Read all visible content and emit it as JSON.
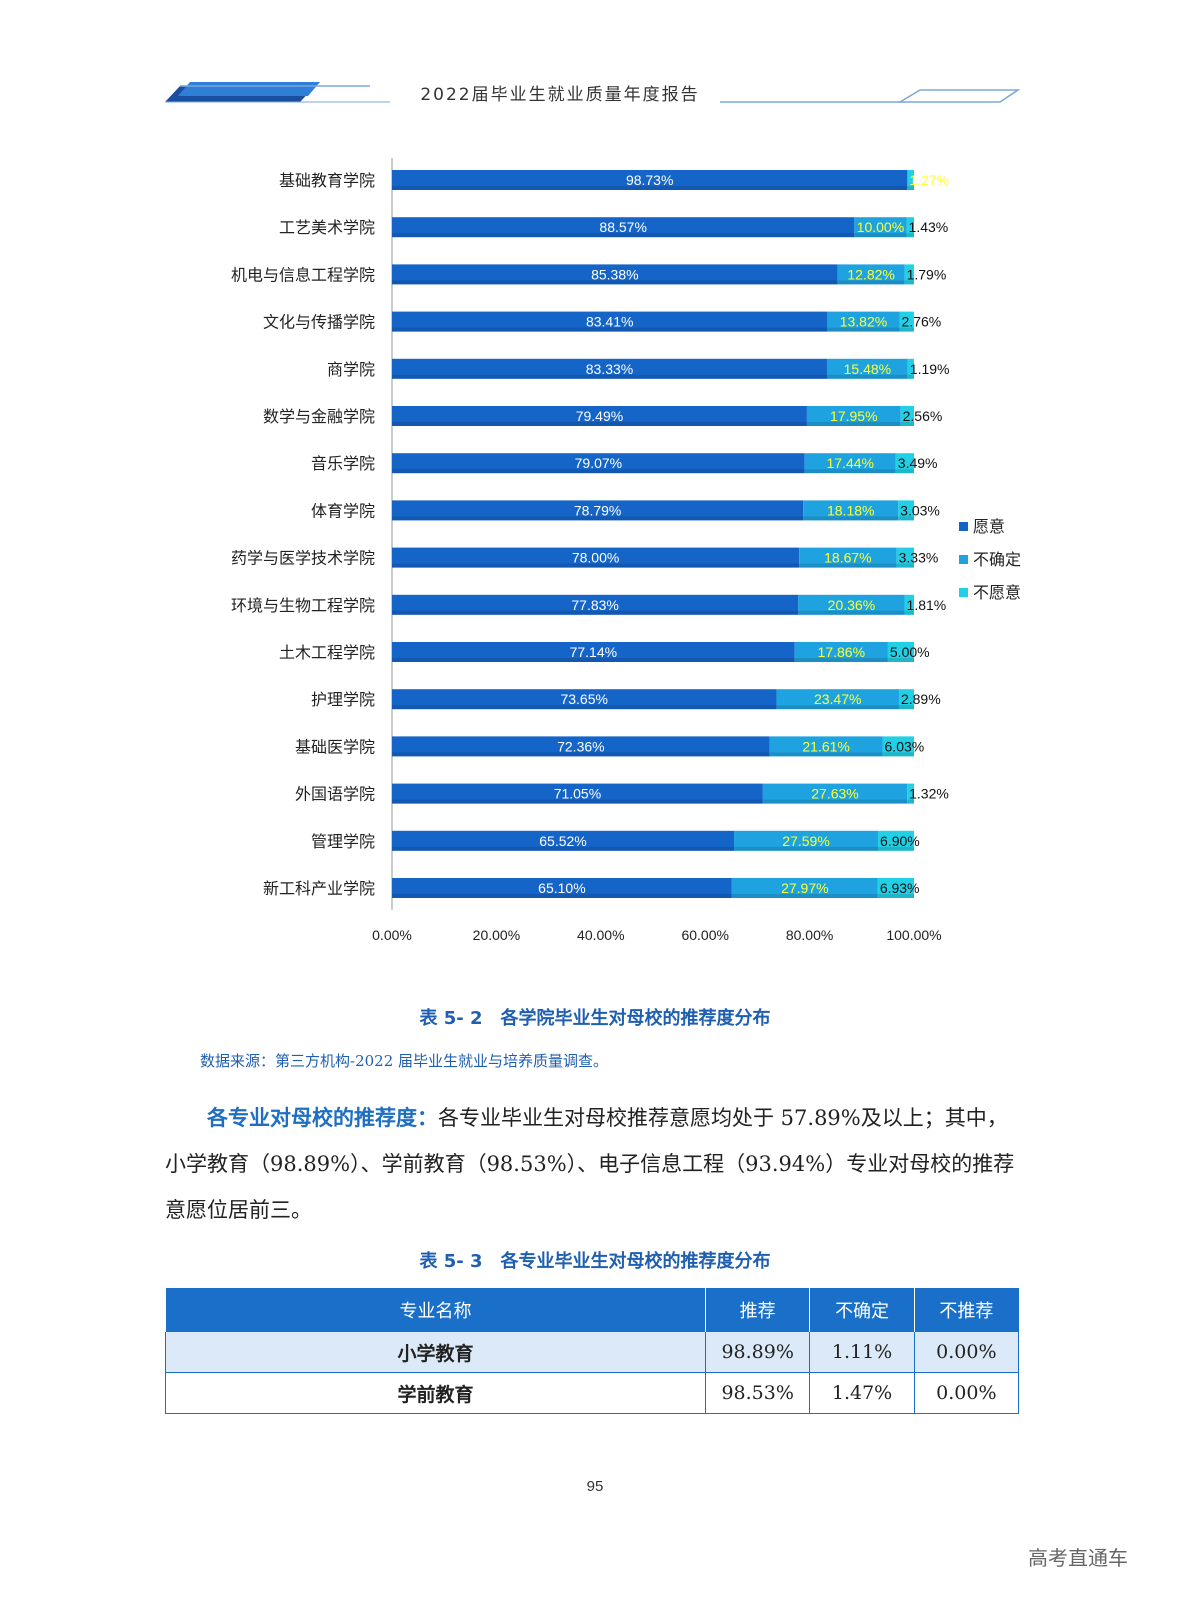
{
  "header": {
    "title": "2022届毕业生就业质量年度报告"
  },
  "chart_data": {
    "type": "bar",
    "orientation": "horizontal",
    "stacked": true,
    "categories": [
      "基础教育学院",
      "工艺美术学院",
      "机电与信息工程学院",
      "文化与传播学院",
      "商学院",
      "数学与金融学院",
      "音乐学院",
      "体育学院",
      "药学与医学技术学院",
      "环境与生物工程学院",
      "土木工程学院",
      "护理学院",
      "基础医学院",
      "外国语学院",
      "管理学院",
      "新工科产业学院"
    ],
    "series": [
      {
        "name": "愿意",
        "color": "#1565c9",
        "values": [
          98.73,
          88.57,
          85.38,
          83.41,
          83.33,
          79.49,
          79.07,
          78.79,
          78.0,
          77.83,
          77.14,
          73.65,
          72.36,
          71.05,
          65.52,
          65.1
        ],
        "labels": [
          "98.73%",
          "88.57%",
          "85.38%",
          "83.41%",
          "83.33%",
          "79.49%",
          "79.07%",
          "78.79%",
          "78.00%",
          "77.83%",
          "77.14%",
          "73.65%",
          "72.36%",
          "71.05%",
          "65.52%",
          "65.10%"
        ]
      },
      {
        "name": "不确定",
        "color": "#1fa3e0",
        "values": [
          0,
          10.0,
          12.82,
          13.82,
          15.48,
          17.95,
          17.44,
          18.18,
          18.67,
          20.36,
          17.86,
          23.47,
          21.61,
          27.63,
          27.59,
          27.97
        ],
        "labels": [
          "",
          "10.00%",
          "12.82%",
          "13.82%",
          "15.48%",
          "17.95%",
          "17.44%",
          "18.18%",
          "18.67%",
          "20.36%",
          "17.86%",
          "23.47%",
          "21.61%",
          "27.63%",
          "27.59%",
          "27.97%"
        ]
      },
      {
        "name": "不愿意",
        "color": "#22d0e6",
        "values": [
          1.27,
          1.43,
          1.79,
          2.76,
          1.19,
          2.56,
          3.49,
          3.03,
          3.33,
          1.81,
          5.0,
          2.89,
          6.03,
          1.32,
          6.9,
          6.93
        ],
        "labels": [
          "1.27%",
          "1.43%",
          "1.79%",
          "2.76%",
          "1.19%",
          "2.56%",
          "3.49%",
          "3.03%",
          "3.33%",
          "1.81%",
          "5.00%",
          "2.89%",
          "6.03%",
          "1.32%",
          "6.90%",
          "6.93%"
        ]
      }
    ],
    "x_ticks": [
      "0.00%",
      "20.00%",
      "40.00%",
      "60.00%",
      "80.00%",
      "100.00%"
    ],
    "xlim": [
      0,
      100
    ],
    "legend_position": "right",
    "grid": false
  },
  "caption_1": "表 5- 2　各学院毕业生对母校的推荐度分布",
  "source": "数据来源：第三方机构-2022 届毕业生就业与培养质量调查。",
  "paragraph": {
    "lead": "各专业对母校的推荐度：",
    "body": "各专业毕业生对母校推荐意愿均处于 57.89%及以上；其中，小学教育（98.89%）、学前教育（98.53%）、电子信息工程（93.94%）专业对母校的推荐意愿位居前三。"
  },
  "caption_2": "表 5- 3　各专业毕业生对母校的推荐度分布",
  "table": {
    "headers": [
      "专业名称",
      "推荐",
      "不确定",
      "不推荐"
    ],
    "rows": [
      [
        "小学教育",
        "98.89%",
        "1.11%",
        "0.00%"
      ],
      [
        "学前教育",
        "98.53%",
        "1.47%",
        "0.00%"
      ]
    ]
  },
  "page_number": "95",
  "watermark": "高考直通车"
}
